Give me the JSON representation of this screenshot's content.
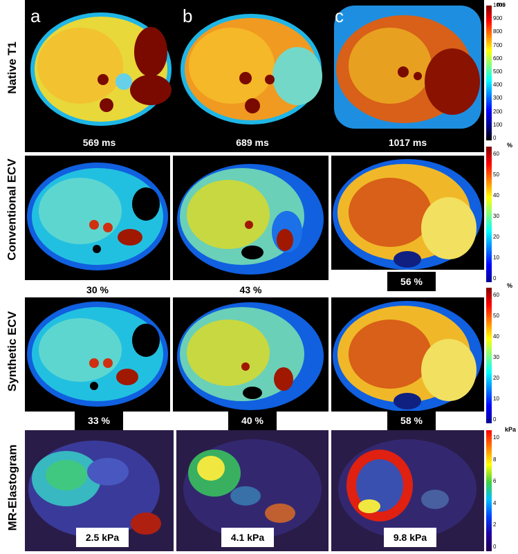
{
  "column_letters": [
    "a",
    "b",
    "c"
  ],
  "rows": [
    {
      "label": "Native T1",
      "values": [
        "569 ms",
        "689 ms",
        "1017 ms"
      ]
    },
    {
      "label": "Conventional ECV",
      "values": [
        "30 %",
        "43 %",
        "56 %"
      ]
    },
    {
      "label": "Synthetic  ECV",
      "values": [
        "33 %",
        "40 %",
        "58 %"
      ]
    },
    {
      "label": "MR-Elastogram",
      "values": [
        "2.5 kPa",
        "4.1 kPa",
        "9.8 kPa"
      ]
    }
  ],
  "colorbars": {
    "t1": {
      "unit": "ms",
      "ticks": [
        "1000",
        "900",
        "800",
        "700",
        "600",
        "500",
        "400",
        "300",
        "200",
        "100",
        "0"
      ]
    },
    "ecv_conv": {
      "unit": "%",
      "ticks": [
        "60",
        "50",
        "40",
        "30",
        "20",
        "10",
        "0"
      ]
    },
    "ecv_syn": {
      "unit": "%",
      "ticks": [
        "60",
        "50",
        "40",
        "30",
        "20",
        "10",
        "0"
      ]
    },
    "mre": {
      "unit": "kPa",
      "ticks": [
        "10",
        "8",
        "6",
        "4",
        "2",
        "0"
      ]
    }
  },
  "colors": {
    "jet_low": "#00008f",
    "jet_high": "#800000",
    "background": "#000000"
  }
}
